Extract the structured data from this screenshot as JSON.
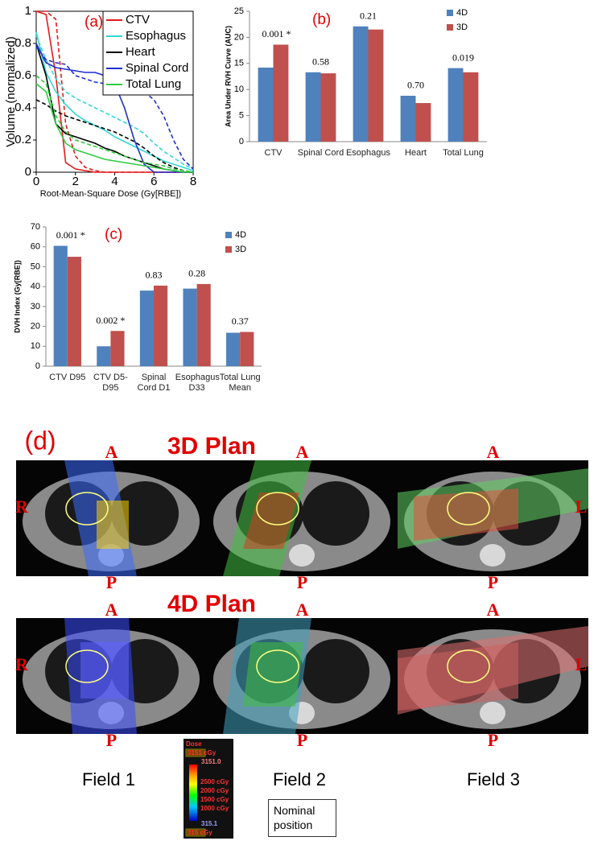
{
  "chart_data": [
    {
      "type": "line",
      "panel_label": "(a)",
      "xlabel": "Root-Mean-Square Dose (Gy[RBE])",
      "ylabel": "Volume (normalized)",
      "x": [
        0,
        0.5,
        1,
        1.5,
        2,
        2.5,
        3,
        3.5,
        4,
        4.5,
        5,
        5.5,
        6,
        6.5,
        7,
        7.5,
        8
      ],
      "xlim": [
        0,
        8
      ],
      "xticks": [
        0,
        2,
        4,
        6,
        8
      ],
      "ylim": [
        0,
        1
      ],
      "yticks": [
        0,
        0.2,
        0.4,
        0.6,
        0.8,
        1
      ],
      "series": [
        {
          "name": "CTV",
          "color": "#e31a1c",
          "values": [
            1,
            0.98,
            0.6,
            0.06,
            0.02,
            0.01,
            0,
            0,
            0,
            0,
            0,
            0,
            0,
            0,
            0,
            0,
            0
          ],
          "values_dashed": [
            1,
            1,
            0.95,
            0.3,
            0.1,
            0.03,
            0.01,
            0,
            0,
            0,
            0,
            0,
            0,
            0,
            0,
            0,
            0
          ]
        },
        {
          "name": "Esophagus",
          "color": "#33d6d6",
          "values": [
            0.87,
            0.62,
            0.5,
            0.42,
            0.36,
            0.32,
            0.29,
            0.26,
            0.22,
            0.19,
            0.16,
            0.13,
            0.1,
            0.07,
            0.05,
            0.03,
            0.01
          ],
          "values_dashed": [
            0.85,
            0.7,
            0.58,
            0.5,
            0.46,
            0.43,
            0.4,
            0.37,
            0.34,
            0.31,
            0.28,
            0.24,
            0.18,
            0.13,
            0.09,
            0.05,
            0.02
          ]
        },
        {
          "name": "Heart",
          "color": "#000000",
          "values": [
            0.8,
            0.6,
            0.3,
            0.24,
            0.22,
            0.2,
            0.18,
            0.15,
            0.13,
            0.1,
            0.08,
            0.06,
            0.04,
            0.02,
            0.01,
            0,
            0
          ],
          "values_dashed": [
            0.45,
            0.42,
            0.38,
            0.35,
            0.33,
            0.31,
            0.29,
            0.27,
            0.25,
            0.22,
            0.19,
            0.15,
            0.1,
            0.06,
            0.03,
            0.01,
            0
          ]
        },
        {
          "name": "Spinal Cord",
          "color": "#1f2fd0",
          "values": [
            0.8,
            0.68,
            0.65,
            0.64,
            0.63,
            0.62,
            0.62,
            0.6,
            0.55,
            0.4,
            0.2,
            0.05,
            0,
            0,
            0,
            0,
            0
          ],
          "values_dashed": [
            0.78,
            0.7,
            0.68,
            0.67,
            0.6,
            0.58,
            0.56,
            0.55,
            0.54,
            0.53,
            0.52,
            0.5,
            0.45,
            0.35,
            0.2,
            0.08,
            0.02
          ]
        },
        {
          "name": "Total Lung",
          "color": "#2ecc40",
          "values": [
            0.55,
            0.5,
            0.3,
            0.18,
            0.14,
            0.12,
            0.1,
            0.08,
            0.07,
            0.06,
            0.05,
            0.04,
            0.03,
            0.02,
            0.01,
            0,
            0
          ],
          "values_dashed": [
            0.6,
            0.55,
            0.35,
            0.25,
            0.2,
            0.18,
            0.16,
            0.14,
            0.12,
            0.1,
            0.08,
            0.06,
            0.05,
            0.04,
            0.02,
            0.01,
            0
          ]
        }
      ]
    },
    {
      "type": "bar",
      "panel_label": "(b)",
      "ylabel": "Area Under RVH Curve (AUC)",
      "categories": [
        "CTV",
        "Spinal Cord",
        "Esophagus",
        "Heart",
        "Total Lung"
      ],
      "ylim": [
        0,
        25
      ],
      "yticks": [
        0,
        5,
        10,
        15,
        20,
        25
      ],
      "series": [
        {
          "name": "4D",
          "color": "#4f81bd",
          "values": [
            14.2,
            13.3,
            22.1,
            8.8,
            14.1
          ]
        },
        {
          "name": "3D",
          "color": "#c0504d",
          "values": [
            18.6,
            13.1,
            21.5,
            7.4,
            13.3
          ]
        }
      ],
      "annotations": [
        "0.001 *",
        "0.58",
        "0.21",
        "0.70",
        "0.019"
      ]
    },
    {
      "type": "bar",
      "panel_label": "(c)",
      "ylabel": "DVH Index (Gy[RBE])",
      "categories": [
        "CTV D95",
        "CTV D5-D95",
        "Spinal Cord D1",
        "Esophagus D33",
        "Total Lung Mean"
      ],
      "ylim": [
        0,
        70
      ],
      "yticks": [
        0,
        10,
        20,
        30,
        40,
        50,
        60,
        70
      ],
      "series": [
        {
          "name": "4D",
          "color": "#4f81bd",
          "values": [
            60.5,
            10,
            38,
            39,
            16.8
          ]
        },
        {
          "name": "3D",
          "color": "#c0504d",
          "values": [
            55,
            17.7,
            40.5,
            41.3,
            17.2
          ]
        }
      ],
      "annotations": [
        "0.001 *",
        "0.002 *",
        "0.83",
        "0.28",
        "0.37"
      ]
    }
  ],
  "panel_d": {
    "label": "(d)",
    "rows": [
      {
        "title": "3D Plan"
      },
      {
        "title": "4D Plan"
      }
    ],
    "orientation": {
      "anterior": "A",
      "posterior": "P",
      "right": "R",
      "left": "L"
    },
    "fields": [
      "Field 1",
      "Field 2",
      "Field 3"
    ],
    "colorbar": {
      "title": "Dose",
      "max_box": "3151 cGy",
      "max": "3151.0",
      "levels": [
        "2500 cGy",
        "2000 cGy",
        "1500 cGy",
        "1000 cGy"
      ],
      "min": "315.1",
      "min_box": "315 cGy"
    },
    "note": "Nominal position"
  }
}
